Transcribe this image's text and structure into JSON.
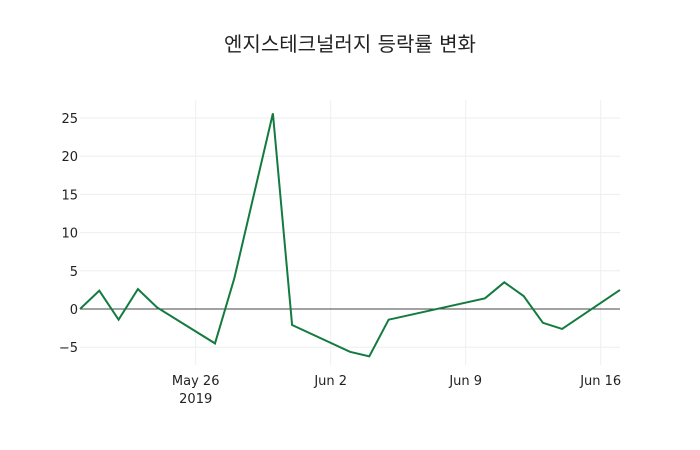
{
  "chart_data": {
    "type": "line",
    "title": "엔지스테크널러지 등락률 변화",
    "xlabel": "",
    "ylabel": "",
    "x": [
      "2019-05-20",
      "2019-05-21",
      "2019-05-22",
      "2019-05-23",
      "2019-05-24",
      "2019-05-27",
      "2019-05-28",
      "2019-05-30",
      "2019-05-31",
      "2019-06-03",
      "2019-06-04",
      "2019-06-05",
      "2019-06-10",
      "2019-06-11",
      "2019-06-12",
      "2019-06-13",
      "2019-06-14",
      "2019-06-17"
    ],
    "series": [
      {
        "name": "등락률",
        "color": "#137b3f",
        "values": [
          0,
          2.4,
          -1.4,
          2.6,
          0.2,
          -4.5,
          4.0,
          25.6,
          -2.1,
          -5.6,
          -6.2,
          -1.4,
          1.4,
          3.5,
          1.7,
          -1.8,
          -2.6,
          2.5
        ]
      }
    ],
    "ylim": [
      -7.5,
      27
    ],
    "yticks": [
      -5,
      0,
      5,
      10,
      15,
      20,
      25
    ],
    "xticks": [
      {
        "date": "2019-05-26",
        "label": "May 26",
        "sublabel": "2019"
      },
      {
        "date": "2019-06-02",
        "label": "Jun 2"
      },
      {
        "date": "2019-06-09",
        "label": "Jun 9"
      },
      {
        "date": "2019-06-16",
        "label": "Jun 16"
      }
    ],
    "grid": true,
    "legend": false
  }
}
